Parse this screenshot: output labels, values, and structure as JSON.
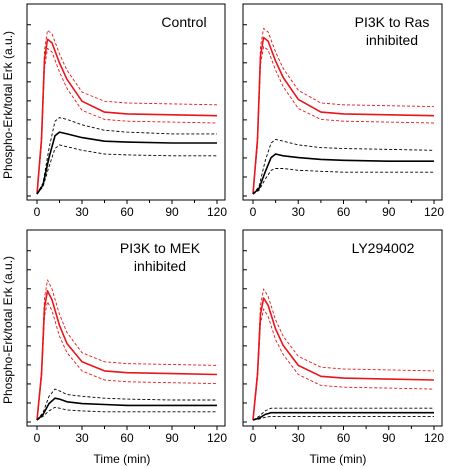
{
  "figure": {
    "ylabel": "Phospho-Erk/total Erk (a.u.)",
    "xlabel": "Time (min)"
  },
  "chart_data": [
    {
      "type": "line",
      "title": "Control",
      "xlim": [
        0,
        120
      ],
      "ylim": [
        0,
        1.0
      ],
      "x_ticks": [
        "0",
        "30",
        "60",
        "90",
        "120"
      ],
      "y_tick_labels": [],
      "y_minor_ticks": 10,
      "series": [
        {
          "color": "#e8161b",
          "style": "solid",
          "x": [
            0,
            3,
            5,
            7,
            10,
            15,
            20,
            30,
            45,
            60,
            90,
            120
          ],
          "y": [
            0,
            0.3,
            0.74,
            0.85,
            0.83,
            0.72,
            0.63,
            0.51,
            0.45,
            0.44,
            0.435,
            0.43
          ]
        },
        {
          "color": "#e8161b",
          "style": "dashed",
          "x": [
            0,
            3,
            5,
            7,
            10,
            15,
            20,
            30,
            45,
            60,
            90,
            120
          ],
          "y": [
            0,
            0.32,
            0.79,
            0.9,
            0.88,
            0.77,
            0.68,
            0.56,
            0.51,
            0.5,
            0.495,
            0.49
          ]
        },
        {
          "color": "#e8161b",
          "style": "dashed",
          "x": [
            0,
            3,
            5,
            7,
            10,
            15,
            20,
            30,
            45,
            60,
            90,
            120
          ],
          "y": [
            0,
            0.27,
            0.69,
            0.8,
            0.78,
            0.67,
            0.58,
            0.46,
            0.41,
            0.4,
            0.395,
            0.39
          ]
        },
        {
          "color": "#000000",
          "style": "solid",
          "x": [
            0,
            4,
            8,
            12,
            15,
            20,
            30,
            45,
            60,
            90,
            120
          ],
          "y": [
            0,
            0.05,
            0.2,
            0.32,
            0.34,
            0.33,
            0.31,
            0.29,
            0.285,
            0.28,
            0.28
          ]
        },
        {
          "color": "#000000",
          "style": "dashed",
          "x": [
            0,
            4,
            8,
            12,
            15,
            20,
            30,
            45,
            60,
            90,
            120
          ],
          "y": [
            0,
            0.06,
            0.25,
            0.4,
            0.42,
            0.41,
            0.38,
            0.35,
            0.34,
            0.33,
            0.33
          ]
        },
        {
          "color": "#000000",
          "style": "dashed",
          "x": [
            0,
            4,
            8,
            12,
            15,
            20,
            30,
            45,
            60,
            90,
            120
          ],
          "y": [
            0,
            0.04,
            0.15,
            0.25,
            0.27,
            0.26,
            0.24,
            0.22,
            0.215,
            0.21,
            0.21
          ]
        }
      ]
    },
    {
      "type": "line",
      "title": "PI3K to Ras\ninhibited",
      "xlim": [
        0,
        120
      ],
      "ylim": [
        0,
        1.0
      ],
      "x_ticks": [
        "0",
        "30",
        "60",
        "90",
        "120"
      ],
      "y_tick_labels": [],
      "y_minor_ticks": 10,
      "series": [
        {
          "color": "#e8161b",
          "style": "solid",
          "x": [
            0,
            3,
            5,
            7,
            10,
            15,
            20,
            30,
            45,
            60,
            90,
            120
          ],
          "y": [
            0,
            0.3,
            0.76,
            0.86,
            0.84,
            0.73,
            0.64,
            0.52,
            0.45,
            0.44,
            0.435,
            0.43
          ]
        },
        {
          "color": "#e8161b",
          "style": "dashed",
          "x": [
            0,
            3,
            5,
            7,
            10,
            15,
            20,
            30,
            45,
            60,
            90,
            120
          ],
          "y": [
            0,
            0.32,
            0.81,
            0.91,
            0.89,
            0.78,
            0.69,
            0.57,
            0.5,
            0.49,
            0.485,
            0.48
          ]
        },
        {
          "color": "#e8161b",
          "style": "dashed",
          "x": [
            0,
            3,
            5,
            7,
            10,
            15,
            20,
            30,
            45,
            60,
            90,
            120
          ],
          "y": [
            0,
            0.27,
            0.71,
            0.81,
            0.79,
            0.68,
            0.59,
            0.47,
            0.41,
            0.4,
            0.395,
            0.39
          ]
        },
        {
          "color": "#000000",
          "style": "solid",
          "x": [
            0,
            4,
            8,
            12,
            15,
            20,
            30,
            45,
            60,
            90,
            120
          ],
          "y": [
            0,
            0.03,
            0.12,
            0.2,
            0.22,
            0.21,
            0.2,
            0.19,
            0.185,
            0.18,
            0.18
          ]
        },
        {
          "color": "#000000",
          "style": "dashed",
          "x": [
            0,
            4,
            8,
            12,
            15,
            20,
            30,
            45,
            60,
            90,
            120
          ],
          "y": [
            0,
            0.04,
            0.18,
            0.28,
            0.3,
            0.29,
            0.27,
            0.255,
            0.25,
            0.245,
            0.24
          ]
        },
        {
          "color": "#000000",
          "style": "dashed",
          "x": [
            0,
            4,
            8,
            12,
            15,
            20,
            30,
            45,
            60,
            90,
            120
          ],
          "y": [
            0,
            0.02,
            0.08,
            0.13,
            0.14,
            0.14,
            0.13,
            0.125,
            0.12,
            0.12,
            0.12
          ]
        }
      ]
    },
    {
      "type": "line",
      "title": "PI3K to MEK\ninhibited",
      "xlim": [
        0,
        120
      ],
      "ylim": [
        0,
        1.0
      ],
      "x_ticks": [
        "0",
        "30",
        "60",
        "90",
        "120"
      ],
      "y_tick_labels": [],
      "y_minor_ticks": 10,
      "series": [
        {
          "color": "#e8161b",
          "style": "solid",
          "x": [
            0,
            3,
            5,
            7,
            10,
            15,
            20,
            30,
            45,
            60,
            90,
            120
          ],
          "y": [
            0,
            0.25,
            0.62,
            0.71,
            0.66,
            0.52,
            0.42,
            0.32,
            0.27,
            0.26,
            0.255,
            0.25
          ]
        },
        {
          "color": "#e8161b",
          "style": "dashed",
          "x": [
            0,
            3,
            5,
            7,
            10,
            15,
            20,
            30,
            45,
            60,
            90,
            120
          ],
          "y": [
            0,
            0.27,
            0.67,
            0.77,
            0.72,
            0.58,
            0.48,
            0.37,
            0.32,
            0.31,
            0.305,
            0.3
          ]
        },
        {
          "color": "#e8161b",
          "style": "dashed",
          "x": [
            0,
            3,
            5,
            7,
            10,
            15,
            20,
            30,
            45,
            60,
            90,
            120
          ],
          "y": [
            0,
            0.23,
            0.57,
            0.65,
            0.6,
            0.46,
            0.37,
            0.27,
            0.22,
            0.21,
            0.205,
            0.2
          ]
        },
        {
          "color": "#000000",
          "style": "solid",
          "x": [
            0,
            4,
            8,
            12,
            15,
            20,
            30,
            45,
            60,
            90,
            120
          ],
          "y": [
            0,
            0.03,
            0.09,
            0.12,
            0.115,
            0.1,
            0.09,
            0.085,
            0.08,
            0.08,
            0.08
          ]
        },
        {
          "color": "#000000",
          "style": "dashed",
          "x": [
            0,
            4,
            8,
            12,
            15,
            20,
            30,
            45,
            60,
            90,
            120
          ],
          "y": [
            0,
            0.04,
            0.13,
            0.17,
            0.16,
            0.14,
            0.13,
            0.12,
            0.115,
            0.11,
            0.11
          ]
        },
        {
          "color": "#000000",
          "style": "dashed",
          "x": [
            0,
            4,
            8,
            12,
            15,
            20,
            30,
            45,
            60,
            90,
            120
          ],
          "y": [
            0,
            0.02,
            0.05,
            0.07,
            0.065,
            0.055,
            0.05,
            0.045,
            0.045,
            0.045,
            0.045
          ]
        }
      ]
    },
    {
      "type": "line",
      "title": "LY294002",
      "xlim": [
        0,
        120
      ],
      "ylim": [
        0,
        1.0
      ],
      "x_ticks": [
        "0",
        "30",
        "60",
        "90",
        "120"
      ],
      "y_tick_labels": [],
      "y_minor_ticks": 10,
      "series": [
        {
          "color": "#e8161b",
          "style": "solid",
          "x": [
            0,
            3,
            5,
            7,
            10,
            15,
            20,
            30,
            45,
            60,
            90,
            120
          ],
          "y": [
            0,
            0.25,
            0.58,
            0.67,
            0.63,
            0.5,
            0.41,
            0.3,
            0.24,
            0.23,
            0.225,
            0.22
          ]
        },
        {
          "color": "#e8161b",
          "style": "dashed",
          "x": [
            0,
            3,
            5,
            7,
            10,
            15,
            20,
            30,
            45,
            60,
            90,
            120
          ],
          "y": [
            0,
            0.27,
            0.63,
            0.72,
            0.68,
            0.55,
            0.46,
            0.35,
            0.29,
            0.28,
            0.275,
            0.27
          ]
        },
        {
          "color": "#e8161b",
          "style": "dashed",
          "x": [
            0,
            3,
            5,
            7,
            10,
            15,
            20,
            30,
            45,
            60,
            90,
            120
          ],
          "y": [
            0,
            0.23,
            0.53,
            0.61,
            0.57,
            0.44,
            0.36,
            0.25,
            0.19,
            0.18,
            0.175,
            0.17
          ]
        },
        {
          "color": "#000000",
          "style": "solid",
          "x": [
            0,
            4,
            8,
            12,
            15,
            20,
            30,
            45,
            60,
            90,
            120
          ],
          "y": [
            0,
            0.01,
            0.03,
            0.04,
            0.04,
            0.04,
            0.04,
            0.04,
            0.04,
            0.04,
            0.04
          ]
        },
        {
          "color": "#000000",
          "style": "dashed",
          "x": [
            0,
            4,
            8,
            12,
            15,
            20,
            30,
            45,
            60,
            90,
            120
          ],
          "y": [
            0,
            0.02,
            0.05,
            0.065,
            0.065,
            0.065,
            0.065,
            0.065,
            0.065,
            0.065,
            0.065
          ]
        },
        {
          "color": "#000000",
          "style": "dashed",
          "x": [
            0,
            4,
            8,
            12,
            15,
            20,
            30,
            45,
            60,
            90,
            120
          ],
          "y": [
            0,
            0.005,
            0.015,
            0.02,
            0.02,
            0.02,
            0.02,
            0.02,
            0.02,
            0.02,
            0.02
          ]
        }
      ]
    }
  ]
}
